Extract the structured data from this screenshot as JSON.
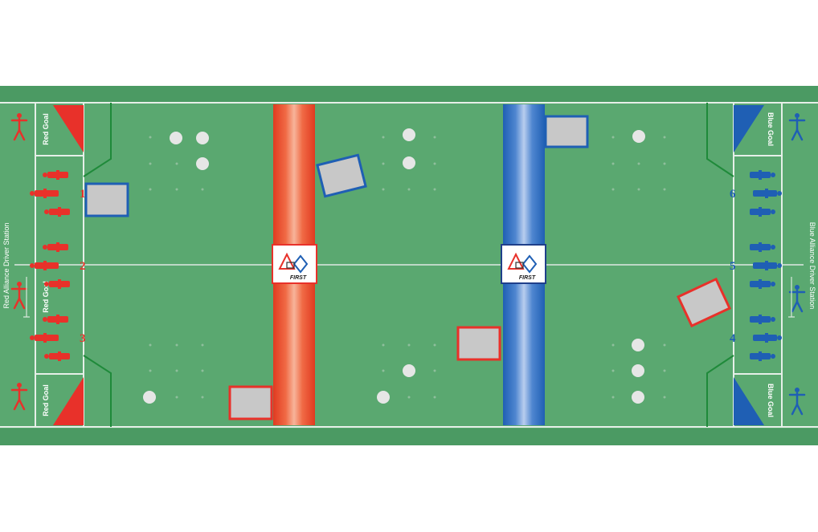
{
  "labels": {
    "red_station": "Red Alliance Driver Station",
    "blue_station": "Blue Alliance Driver Station",
    "red_goal_top": "Red Goal",
    "red_goal_mid": "Red Goal",
    "red_goal_bottom": "Red Goal",
    "blue_goal_top": "Blue Goal",
    "blue_goal_bottom": "Blue Goal",
    "first_logo_red": "FIRST",
    "first_logo_blue": "FIRST"
  },
  "stations": {
    "red": [
      "1",
      "2",
      "3"
    ],
    "blue": [
      "6",
      "5",
      "4"
    ]
  },
  "colors": {
    "field_green": "#5aa870",
    "field_dark_green": "#4b9a63",
    "red_alliance": "#e8312a",
    "blue_alliance": "#1f5fb4",
    "line_white": "#e6efe8",
    "trailer_gray": "#c8c8c8"
  }
}
